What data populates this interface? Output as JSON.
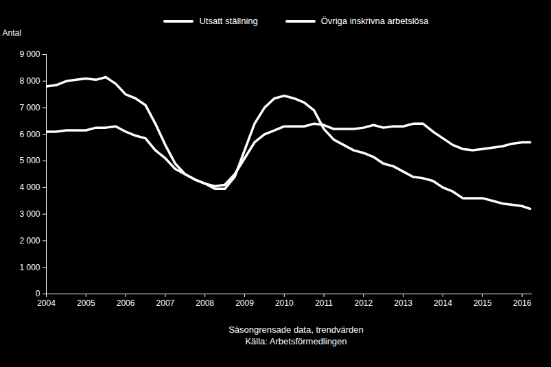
{
  "chart_data": {
    "type": "line",
    "y_label": "Antal",
    "caption": [
      "Säsongrensade data, trendvärden",
      "Källa: Arbetsförmedlingen"
    ],
    "legend": "top",
    "x": [
      2004,
      2004.25,
      2004.5,
      2004.75,
      2005,
      2005.25,
      2005.5,
      2005.75,
      2006,
      2006.25,
      2006.5,
      2006.75,
      2007,
      2007.25,
      2007.5,
      2007.75,
      2008,
      2008.25,
      2008.5,
      2008.75,
      2009,
      2009.25,
      2009.5,
      2009.75,
      2010,
      2010.25,
      2010.5,
      2010.75,
      2011,
      2011.25,
      2011.5,
      2011.75,
      2012,
      2012.25,
      2012.5,
      2012.75,
      2013,
      2013.25,
      2013.5,
      2013.75,
      2014,
      2014.25,
      2014.5,
      2014.75,
      2015,
      2015.25,
      2015.5,
      2015.75,
      2016,
      2016.2
    ],
    "series": [
      {
        "name": "Utsatt ställning",
        "color": "#ffffff",
        "values": [
          6100,
          6100,
          6150,
          6150,
          6150,
          6250,
          6250,
          6300,
          6100,
          5950,
          5850,
          5400,
          5100,
          4700,
          4500,
          4300,
          4150,
          4050,
          4100,
          4500,
          5100,
          5700,
          6000,
          6150,
          6300,
          6300,
          6300,
          6400,
          6350,
          6200,
          6200,
          6200,
          6250,
          6350,
          6250,
          6300,
          6300,
          6400,
          6400,
          6100,
          5850,
          5600,
          5450,
          5400,
          5450,
          5500,
          5550,
          5650,
          5700,
          5700
        ]
      },
      {
        "name": "Övriga inskrivna arbetslösa",
        "color": "#ffffff",
        "values": [
          7800,
          7850,
          8000,
          8050,
          8100,
          8050,
          8150,
          7900,
          7500,
          7350,
          7100,
          6400,
          5600,
          4900,
          4500,
          4300,
          4150,
          3950,
          3950,
          4400,
          5400,
          6400,
          7000,
          7350,
          7450,
          7350,
          7200,
          6900,
          6200,
          5800,
          5600,
          5400,
          5300,
          5150,
          4900,
          4800,
          4600,
          4400,
          4350,
          4250,
          4000,
          3850,
          3600,
          3600,
          3600,
          3500,
          3400,
          3350,
          3300,
          3200
        ]
      }
    ],
    "xlim": [
      2004,
      2016.25
    ],
    "xticks": [
      2004,
      2005,
      2006,
      2007,
      2008,
      2009,
      2010,
      2011,
      2012,
      2013,
      2014,
      2015,
      2016
    ],
    "ylim": [
      0,
      9000
    ],
    "yticks": [
      0,
      {
        "value": 1000,
        "label": "1 000"
      },
      {
        "value": 2000,
        "label": "2 000"
      },
      {
        "value": 3000,
        "label": "3 000"
      },
      {
        "value": 4000,
        "label": "4 000"
      },
      {
        "value": 5000,
        "label": "5 000"
      },
      {
        "value": 6000,
        "label": "6 000"
      },
      {
        "value": 7000,
        "label": "7 000"
      },
      {
        "value": 8000,
        "label": "8 000"
      },
      {
        "value": 9000,
        "label": "9 000"
      }
    ],
    "grid": false
  }
}
